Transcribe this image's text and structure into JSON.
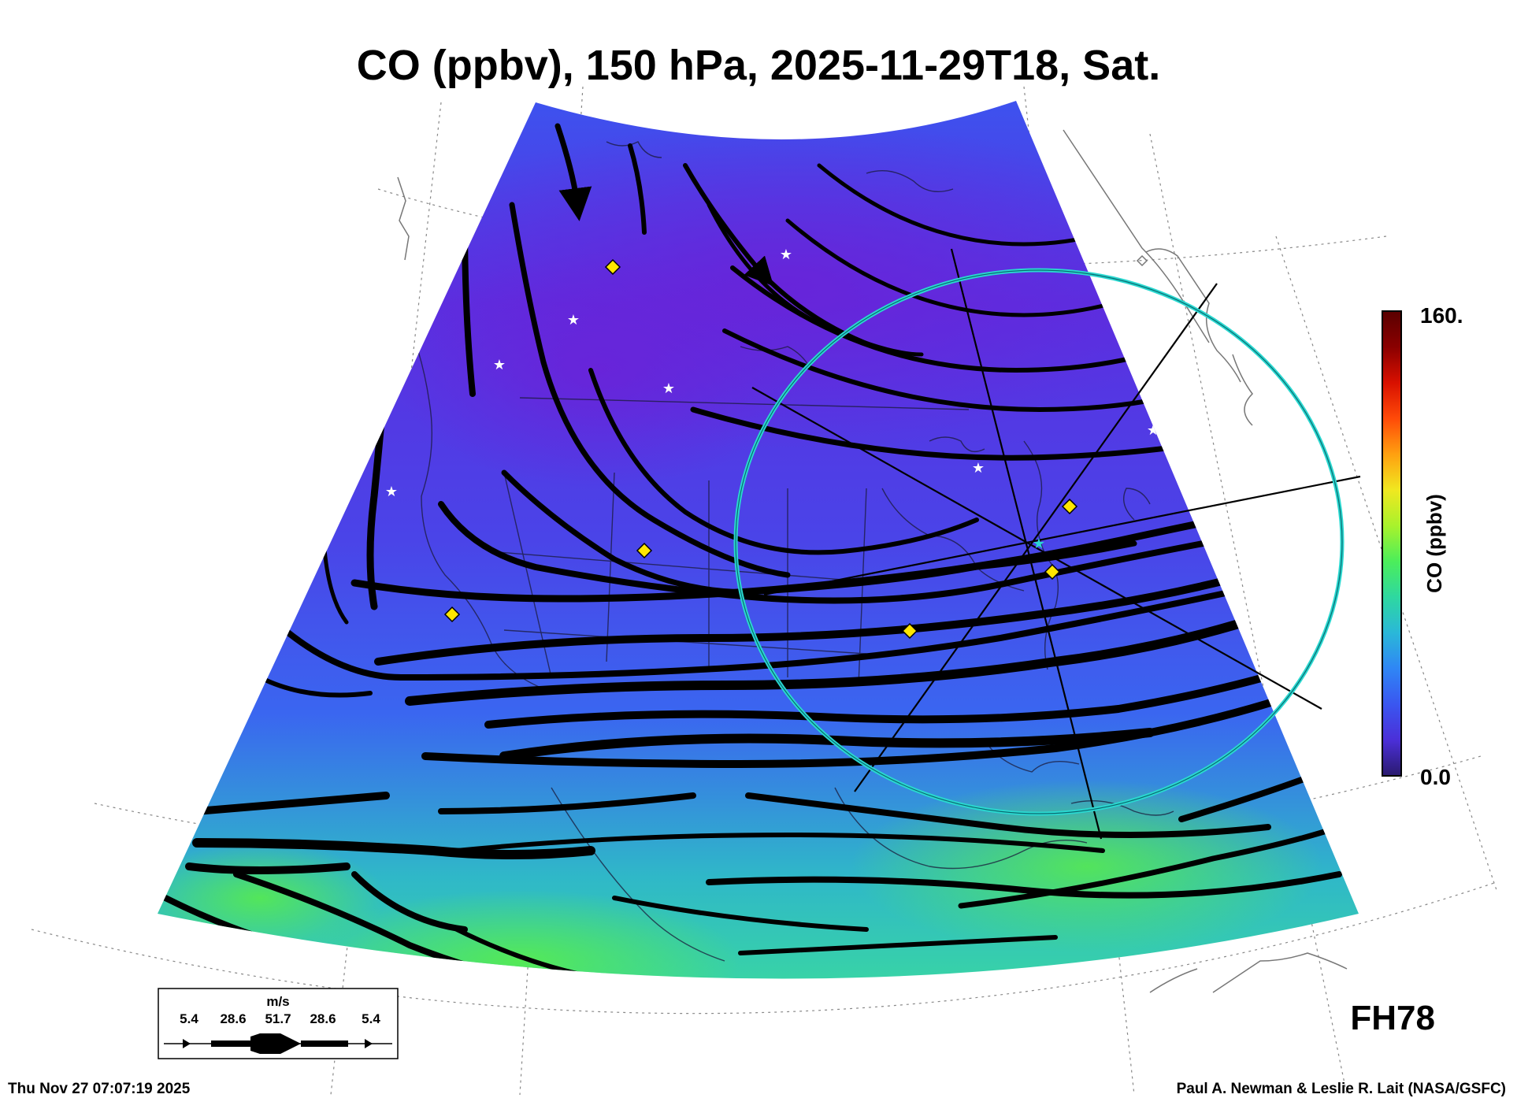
{
  "title": "CO (ppbv), 150 hPa, 2025-11-29T18, Sat.",
  "forecast_hour": "FH78",
  "timestamp": "Thu Nov 27 07:07:19 2025",
  "credits": "Paul A. Newman & Leslie R. Lait (NASA/GSFC)",
  "colorbar": {
    "label": "CO (ppbv)",
    "max_label": "160.",
    "min_label": "0.0",
    "min": 0.0,
    "max": 160,
    "colors": [
      "#2a1a6e",
      "#4b2fd8",
      "#3a56f0",
      "#2f86f5",
      "#2ab8d8",
      "#2ed8a0",
      "#4cee5a",
      "#a8f22c",
      "#f0e820",
      "#ffa010",
      "#ff4a08",
      "#d81000",
      "#8a0000",
      "#5a0000"
    ]
  },
  "wind_legend": {
    "unit": "m/s",
    "speeds": [
      "5.4",
      "28.6",
      "51.7",
      "28.6",
      "5.4"
    ]
  },
  "field": {
    "north_color": "#5a2fe0",
    "mid_color": "#3a66f0",
    "south_color": "#3ad8a0",
    "equator_color": "#4ced5a"
  },
  "target_circle_color": "#2ad8d0",
  "diamond_color": "#ffe600",
  "star_color": "#ffffff"
}
